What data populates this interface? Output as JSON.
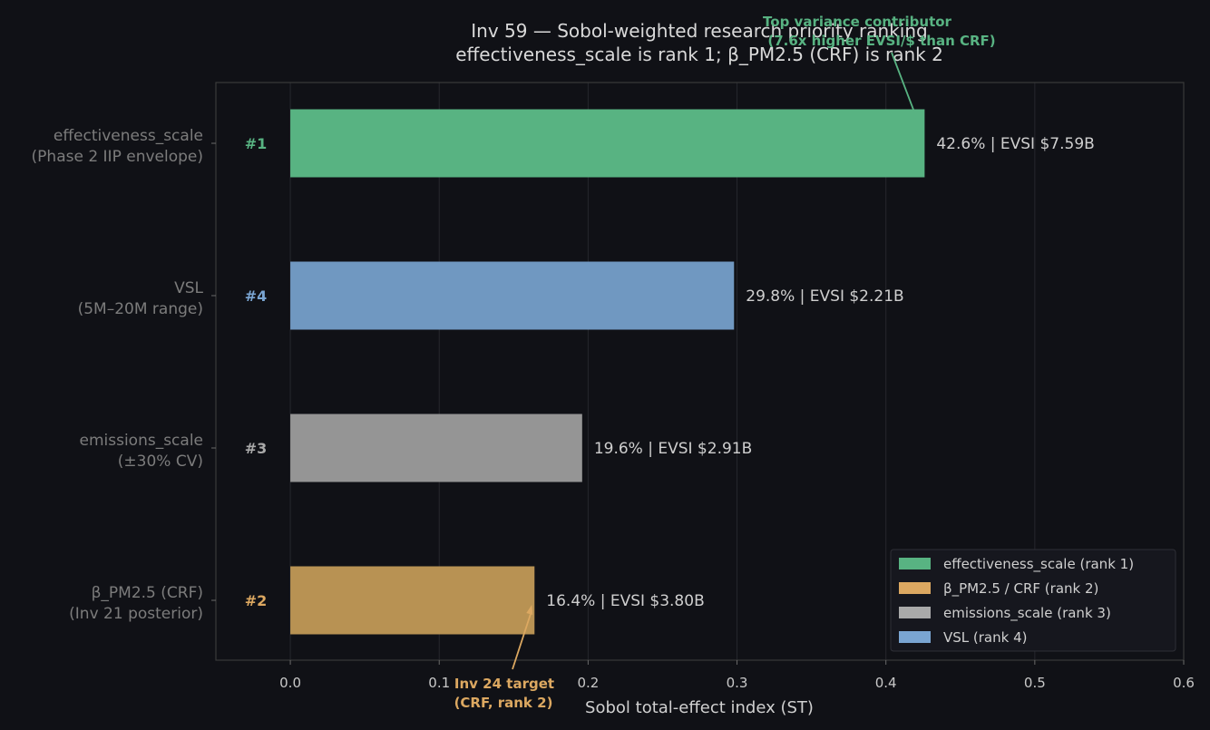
{
  "chart_data": {
    "type": "bar",
    "orientation": "horizontal",
    "title_line1": "Inv 59 — Sobol-weighted research priority ranking",
    "title_line2": "effectiveness_scale is rank 1; β_PM2.5 (CRF) is rank 2",
    "xlabel": "Sobol total-effect index (ST)",
    "xlim": [
      -0.05,
      0.6
    ],
    "xticks": [
      "0.0",
      "0.1",
      "0.2",
      "0.3",
      "0.4",
      "0.5",
      "0.6"
    ],
    "grid": true,
    "categories": [
      {
        "line1": "effectiveness_scale",
        "line2": "(Phase 2 IIP envelope)",
        "rank": "#1",
        "value": 0.426,
        "label": "42.6%  |  EVSI $7.59B",
        "color": "#58b382"
      },
      {
        "line1": "VSL",
        "line2": "(5M–20M range)",
        "rank": "#4",
        "value": 0.298,
        "label": "29.8%  |  EVSI $2.21B",
        "color": "#7098c1"
      },
      {
        "line1": "emissions_scale",
        "line2": "(±30% CV)",
        "rank": "#3",
        "value": 0.196,
        "label": "19.6%  |  EVSI $2.91B",
        "color": "#959595"
      },
      {
        "line1": "β_PM2.5 (CRF)",
        "line2": "(Inv 21 posterior)",
        "rank": "#2",
        "value": 0.164,
        "label": "16.4%  |  EVSI $3.80B",
        "color": "#b89253"
      }
    ],
    "rank_colors": {
      "#1": "#58b382",
      "#2": "#dca861",
      "#3": "#a9a9a9",
      "#4": "#7aa5d2"
    },
    "legend": {
      "placement": "lower-right",
      "entries": [
        {
          "label": "effectiveness_scale (rank 1)",
          "color": "#58b382"
        },
        {
          "label": "β_PM2.5 / CRF (rank 2)",
          "color": "#dca861"
        },
        {
          "label": "emissions_scale (rank 3)",
          "color": "#a9a9a9"
        },
        {
          "label": "VSL (rank 4)",
          "color": "#7aa5d2"
        }
      ]
    },
    "annotations": [
      {
        "line1": "Top variance contributor",
        "line2": "(7.6x higher EVSI/$ than CRF)",
        "color": "#58b382",
        "target_value": 0.426,
        "target_category": 0
      },
      {
        "line1": "Inv 24 target",
        "line2": "(CRF, rank 2)",
        "color": "#dca861",
        "target_value": 0.164,
        "target_category": 3
      }
    ]
  }
}
